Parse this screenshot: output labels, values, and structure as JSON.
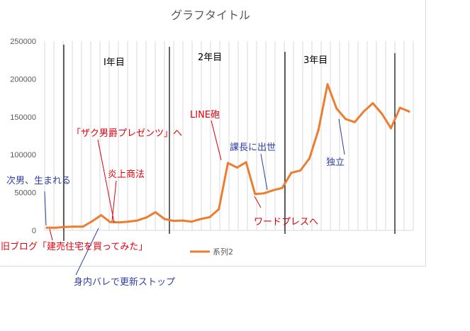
{
  "chart_data": {
    "type": "line",
    "title": "グラフタイトル",
    "xlabel": "",
    "ylabel": "",
    "ylim": [
      0,
      250000
    ],
    "yticks": [
      "0",
      "50000",
      "100000",
      "150000",
      "200000",
      "250000"
    ],
    "grid": "vertical",
    "legend_position": "bottom",
    "series": [
      {
        "name": "系列2",
        "color": "#ED7D31",
        "values": [
          3500,
          3500,
          4500,
          5000,
          5000,
          12000,
          20000,
          11000,
          10500,
          11500,
          13000,
          17000,
          24000,
          15000,
          12500,
          13000,
          11500,
          15000,
          17500,
          28000,
          89000,
          83000,
          90000,
          48000,
          49000,
          53000,
          56000,
          76000,
          79000,
          95000,
          133000,
          193000,
          161000,
          147000,
          143000,
          157000,
          168000,
          154000,
          135000,
          162000,
          157000
        ]
      }
    ]
  },
  "year_labels": [
    "I年目",
    "2年目",
    "3年目"
  ],
  "annotations": {
    "birth": "次男、生まれる",
    "old_blog": "旧ブログ「建売住宅を買ってみた」",
    "zaku": "「ザク男爵プレゼンツ」へ",
    "enjo": "炎上商法",
    "family": "身内バレで更新ストップ",
    "line": "LINE砲",
    "kacho": "課長に出世",
    "wordpress": "ワードプレスへ",
    "dokuritsu": "独立"
  },
  "colors": {
    "red_text": "#e0000d",
    "blue_text": "#2f3fa8",
    "axis_text": "#595959",
    "gridline": "#d9d9d9"
  }
}
